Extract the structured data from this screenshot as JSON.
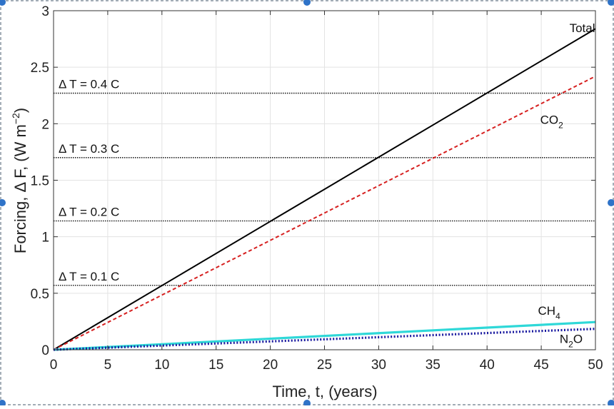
{
  "chart_data": {
    "type": "line",
    "xlabel": "Time, t,  (years)",
    "ylabel_parts": {
      "prefix": "Forcing, ",
      "delta": "Δ",
      "mid": " F,   (W m",
      "exp": "−2",
      "suffix": ")"
    },
    "xlim": [
      0,
      50
    ],
    "ylim": [
      0,
      3
    ],
    "grid": true,
    "x_ticks": [
      0,
      5,
      10,
      15,
      20,
      25,
      30,
      35,
      40,
      45,
      50
    ],
    "x_tick_labels": [
      "0",
      "5",
      "10",
      "15",
      "20",
      "25",
      "30",
      "35",
      "40",
      "45",
      "50"
    ],
    "y_ticks": [
      0,
      0.5,
      1,
      1.5,
      2,
      2.5,
      3
    ],
    "y_tick_labels": [
      "0",
      "0.5",
      "1",
      "1.5",
      "2",
      "2.5",
      "3"
    ],
    "series": [
      {
        "name": "Total",
        "label": "Total",
        "style": "solid",
        "color": "#000000",
        "x": [
          0,
          50
        ],
        "y": [
          0,
          2.84
        ]
      },
      {
        "name": "CO2",
        "label": "CO",
        "sub": "2",
        "style": "dashed",
        "color": "#d62020",
        "x": [
          0,
          50
        ],
        "y": [
          0,
          2.42
        ]
      },
      {
        "name": "CH4",
        "label": "CH",
        "sub": "4",
        "style": "solid",
        "color": "#2fd8d8",
        "x": [
          0,
          50
        ],
        "y": [
          0,
          0.245
        ]
      },
      {
        "name": "N2O",
        "label": "N",
        "sub": "2",
        "tail": "O",
        "style": "dotted",
        "color": "#1a1aa0",
        "x": [
          0,
          50
        ],
        "y": [
          0,
          0.185
        ]
      }
    ],
    "reference_lines": [
      {
        "label": "Δ T = 0.4 C",
        "y": 2.27
      },
      {
        "label": "Δ T = 0.3 C",
        "y": 1.7
      },
      {
        "label": "Δ T = 0.2 C",
        "y": 1.14
      },
      {
        "label": "Δ T = 0.1 C",
        "y": 0.57
      }
    ],
    "colors": {
      "axis": "#333333",
      "grid": "#e3e3e3",
      "reference": "#222222",
      "selection_handle": "#2f73c8",
      "selection_border": "#6a7a8a"
    }
  }
}
